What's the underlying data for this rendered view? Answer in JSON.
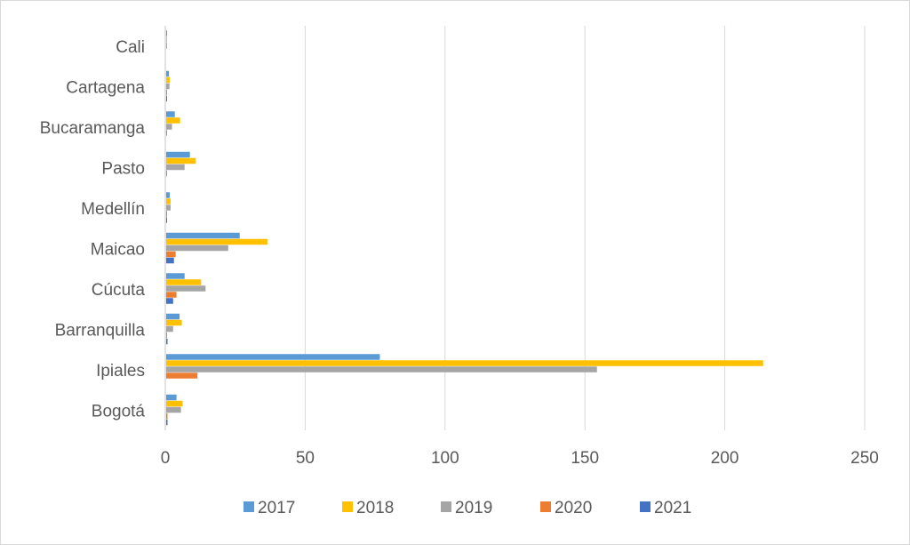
{
  "chart_data": {
    "type": "bar",
    "orientation": "horizontal",
    "title": "",
    "xlabel": "",
    "ylabel": "",
    "categories": [
      "Cali",
      "Cartagena",
      "Bucaramanga",
      "Pasto",
      "Medellín",
      "Maicao",
      "Cúcuta",
      "Barranquilla",
      "Ipiales",
      "Bogotá"
    ],
    "series": [
      {
        "name": "2017",
        "color": "#5B9BD5",
        "values": [
          0.3,
          1.3,
          3.4,
          8.8,
          1.6,
          26.6,
          6.9,
          5.1,
          76.7,
          4.0
        ]
      },
      {
        "name": "2018",
        "color": "#FFC000",
        "values": [
          0.5,
          1.6,
          5.3,
          10.9,
          1.9,
          36.5,
          12.8,
          5.9,
          213.7,
          6.2
        ]
      },
      {
        "name": "2019",
        "color": "#A5A5A5",
        "values": [
          0.5,
          1.5,
          2.4,
          6.9,
          1.9,
          22.5,
          14.4,
          2.8,
          154.3,
          5.6
        ]
      },
      {
        "name": "2020",
        "color": "#ED7D31",
        "values": [
          0,
          0.3,
          0.3,
          0.6,
          0.3,
          3.7,
          4.0,
          0.3,
          11.5,
          0.8
        ]
      },
      {
        "name": "2021",
        "color": "#4472C4",
        "values": [
          0,
          0.3,
          0,
          0,
          0.3,
          3.1,
          2.8,
          0.8,
          0,
          0.8
        ]
      }
    ],
    "xlim": [
      0,
      250
    ],
    "xticks": [
      "0",
      "50",
      "100",
      "150",
      "200",
      "250"
    ],
    "grid": true,
    "legend": "bottom"
  }
}
